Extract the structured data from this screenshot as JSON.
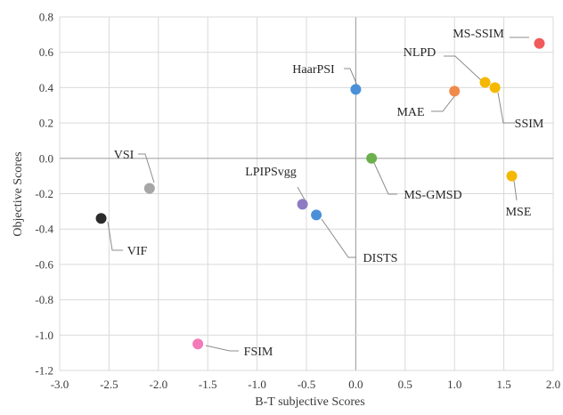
{
  "chart_data": {
    "type": "scatter",
    "title": "",
    "xlabel": "B-T subjective Scores",
    "ylabel": "Objective Scores",
    "xlim": [
      -3.0,
      2.0
    ],
    "ylim": [
      -1.2,
      0.8
    ],
    "x_ticks": [
      "-3.0",
      "-2.5",
      "-2.0",
      "-1.5",
      "-1.0",
      "-0.5",
      "0.0",
      "0.5",
      "1.0",
      "1.5",
      "2.0"
    ],
    "y_ticks": [
      "0.8",
      "0.6",
      "0.4",
      "0.2",
      "0.0",
      "-0.2",
      "-0.4",
      "-0.6",
      "-0.8",
      "-1.0",
      "-1.2"
    ],
    "grid": "vertical and horizontal gridlines",
    "points": [
      {
        "label": "MS-SSIM",
        "x": 1.86,
        "y": 0.65,
        "color": "#f05a5a"
      },
      {
        "label": "NLPD",
        "x": 1.31,
        "y": 0.43,
        "color": "#f5b800"
      },
      {
        "label": "SSIM",
        "x": 1.41,
        "y": 0.4,
        "color": "#f5b800"
      },
      {
        "label": "MAE",
        "x": 1.0,
        "y": 0.38,
        "color": "#f08a4b"
      },
      {
        "label": "HaarPSI",
        "x": 0.0,
        "y": 0.39,
        "color": "#4a90d9"
      },
      {
        "label": "MS-GMSD",
        "x": 0.16,
        "y": 0.0,
        "color": "#6ab04c"
      },
      {
        "label": "MSE",
        "x": 1.58,
        "y": -0.1,
        "color": "#f5b800"
      },
      {
        "label": "VSI",
        "x": -2.09,
        "y": -0.17,
        "color": "#a6a6a6"
      },
      {
        "label": "LPIPSvgg",
        "x": -0.54,
        "y": -0.26,
        "color": "#8e7cc3"
      },
      {
        "label": "DISTS",
        "x": -0.4,
        "y": -0.32,
        "color": "#4a90d9"
      },
      {
        "label": "VIF",
        "x": -2.58,
        "y": -0.34,
        "color": "#2b2b2b"
      },
      {
        "label": "FSIM",
        "x": -1.6,
        "y": -1.05,
        "color": "#f27ab8"
      }
    ]
  }
}
